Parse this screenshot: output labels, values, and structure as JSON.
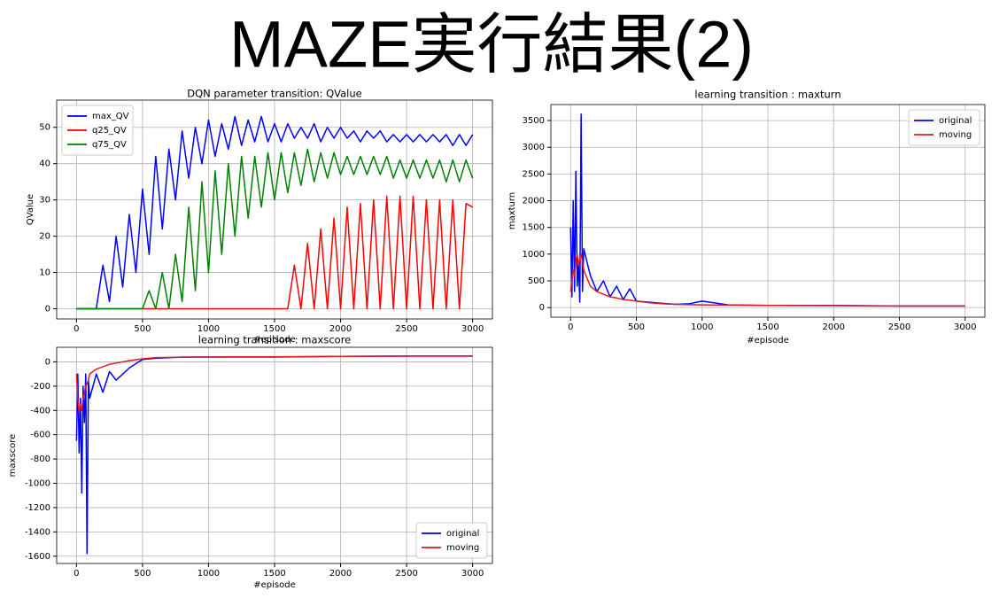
{
  "title": "MAZE実行結果(2)",
  "chart_data": [
    {
      "type": "line",
      "title": "DQN parameter transition: QValue",
      "xlabel": "#episode",
      "ylabel": "QValue",
      "x": [
        0,
        50,
        100,
        150,
        200,
        250,
        300,
        350,
        400,
        450,
        500,
        550,
        600,
        650,
        700,
        750,
        800,
        850,
        900,
        950,
        1000,
        1050,
        1100,
        1150,
        1200,
        1250,
        1300,
        1350,
        1400,
        1450,
        1500,
        1550,
        1600,
        1650,
        1700,
        1750,
        1800,
        1850,
        1900,
        1950,
        2000,
        2050,
        2100,
        2150,
        2200,
        2250,
        2300,
        2350,
        2400,
        2450,
        2500,
        2550,
        2600,
        2650,
        2700,
        2750,
        2800,
        2850,
        2900,
        2950,
        3000
      ],
      "series": [
        {
          "name": "max_QV",
          "color": "#0000ff",
          "values": [
            0,
            0,
            0,
            0,
            12,
            2,
            20,
            6,
            26,
            10,
            33,
            15,
            42,
            22,
            44,
            30,
            49,
            36,
            50,
            40,
            52,
            42,
            51,
            44,
            53,
            45,
            52,
            46,
            53,
            46,
            51,
            46,
            51,
            47,
            50,
            47,
            51,
            46,
            50,
            47,
            50,
            47,
            49,
            46,
            49,
            47,
            49,
            46,
            48,
            46,
            48,
            46,
            48,
            46,
            48,
            46,
            48,
            45,
            48,
            45,
            48
          ]
        },
        {
          "name": "q25_QV",
          "color": "#ff0000",
          "values": [
            0,
            0,
            0,
            0,
            0,
            0,
            0,
            0,
            0,
            0,
            0,
            0,
            0,
            0,
            0,
            0,
            0,
            0,
            0,
            0,
            0,
            0,
            0,
            0,
            0,
            0,
            0,
            0,
            0,
            0,
            0,
            0,
            0,
            12,
            0,
            18,
            0,
            22,
            0,
            25,
            0,
            28,
            0,
            29,
            0,
            30,
            0,
            31,
            0,
            31,
            0,
            31,
            0,
            30,
            0,
            30,
            0,
            30,
            0,
            29,
            28
          ]
        },
        {
          "name": "q75_QV",
          "color": "#008000",
          "values": [
            0,
            0,
            0,
            0,
            0,
            0,
            0,
            0,
            0,
            0,
            0,
            5,
            0,
            10,
            0,
            15,
            2,
            28,
            5,
            35,
            10,
            38,
            15,
            40,
            20,
            42,
            25,
            42,
            28,
            43,
            30,
            43,
            32,
            43,
            34,
            44,
            35,
            43,
            36,
            43,
            37,
            42,
            37,
            42,
            37,
            42,
            37,
            42,
            36,
            41,
            36,
            41,
            36,
            41,
            36,
            41,
            35,
            41,
            35,
            41,
            36
          ]
        }
      ],
      "xlim": [
        -150,
        3150
      ],
      "xticks": [
        0,
        500,
        1000,
        1500,
        2000,
        2500,
        3000
      ],
      "ylim": [
        -2.8,
        57.5
      ],
      "yticks": [
        0,
        10,
        20,
        30,
        40,
        50
      ],
      "grid": true,
      "legend": "upper left"
    },
    {
      "type": "line",
      "title": "learning transition : maxturn",
      "xlabel": "#episode",
      "ylabel": "maxturn",
      "x": [
        0,
        10,
        20,
        30,
        40,
        50,
        60,
        70,
        80,
        90,
        100,
        150,
        200,
        250,
        300,
        350,
        400,
        450,
        500,
        600,
        700,
        800,
        900,
        1000,
        1200,
        1500,
        2000,
        2500,
        3000
      ],
      "series": [
        {
          "name": "original",
          "color": "#0000ff",
          "values": [
            1500,
            200,
            2000,
            300,
            2550,
            400,
            800,
            100,
            3620,
            300,
            1100,
            600,
            300,
            500,
            200,
            400,
            150,
            350,
            120,
            100,
            80,
            60,
            70,
            120,
            50,
            40,
            40,
            30,
            30
          ]
        },
        {
          "name": "moving",
          "color": "#e41a1c",
          "values": [
            300,
            500,
            700,
            600,
            900,
            1000,
            800,
            900,
            1000,
            850,
            700,
            400,
            300,
            250,
            200,
            180,
            150,
            140,
            120,
            90,
            70,
            60,
            55,
            50,
            45,
            40,
            35,
            30,
            30
          ]
        }
      ],
      "xlim": [
        -150,
        3150
      ],
      "xticks": [
        0,
        500,
        1000,
        1500,
        2000,
        2500,
        3000
      ],
      "ylim": [
        -180,
        3800
      ],
      "yticks": [
        0,
        500,
        1000,
        1500,
        2000,
        2500,
        3000,
        3500
      ],
      "grid": true,
      "legend": "upper right"
    },
    {
      "type": "line",
      "title": "learning transition : maxscore",
      "xlabel": "#episode",
      "ylabel": "maxscore",
      "x": [
        0,
        10,
        20,
        30,
        40,
        50,
        60,
        70,
        80,
        90,
        100,
        150,
        200,
        250,
        300,
        400,
        500,
        600,
        800,
        1000,
        1500,
        2000,
        2500,
        3000
      ],
      "series": [
        {
          "name": "original",
          "color": "#0000ff",
          "values": [
            -650,
            -100,
            -750,
            -300,
            -1080,
            -200,
            -500,
            -100,
            -1580,
            -150,
            -300,
            -100,
            -250,
            -80,
            -150,
            -50,
            20,
            30,
            40,
            40,
            40,
            45,
            48,
            48
          ]
        },
        {
          "name": "moving",
          "color": "#e41a1c",
          "values": [
            -100,
            -300,
            -420,
            -350,
            -400,
            -300,
            -250,
            -200,
            -180,
            -150,
            -100,
            -60,
            -40,
            -20,
            -10,
            10,
            25,
            35,
            38,
            40,
            42,
            45,
            47,
            47
          ]
        }
      ],
      "xlim": [
        -150,
        3150
      ],
      "xticks": [
        0,
        500,
        1000,
        1500,
        2000,
        2500,
        3000
      ],
      "ylim": [
        -1660,
        120
      ],
      "yticks": [
        -1600,
        -1400,
        -1200,
        -1000,
        -800,
        -600,
        -400,
        -200,
        0
      ],
      "grid": true,
      "legend": "lower right"
    }
  ]
}
